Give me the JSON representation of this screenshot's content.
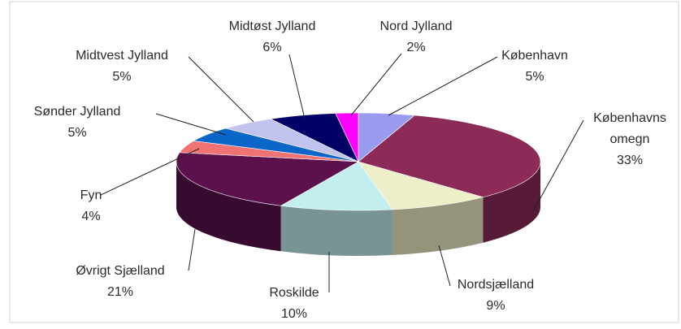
{
  "chart_data": {
    "type": "pie",
    "three_d": true,
    "categories": [
      "København",
      "Københavns omegn",
      "Nordsjælland",
      "Roskilde",
      "Øvrigt Sjælland",
      "Fyn",
      "Sønder Jylland",
      "Midtvest Jylland",
      "Midtøst Jylland",
      "Nord Jylland"
    ],
    "values": [
      5,
      33,
      9,
      10,
      21,
      4,
      5,
      5,
      6,
      2
    ],
    "value_labels": [
      "5%",
      "33%",
      "9%",
      "10%",
      "21%",
      "4%",
      "5%",
      "5%",
      "6%",
      "2%"
    ],
    "colors": [
      "#9a9aee",
      "#8c2b58",
      "#eeeec9",
      "#c2eef0",
      "#5c104c",
      "#f07272",
      "#0a66c8",
      "#c2c2ee",
      "#000066",
      "#ff00ff"
    ]
  }
}
